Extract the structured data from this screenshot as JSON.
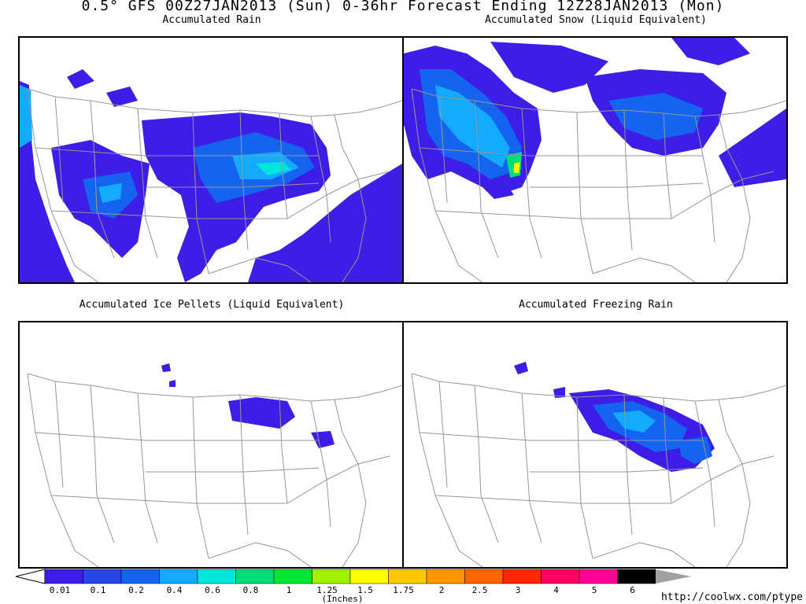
{
  "header": {
    "title": "0.5° GFS 00Z27JAN2013 (Sun) 0-36hr Forecast Ending 12Z28JAN2013 (Mon)"
  },
  "panels": [
    {
      "id": "rain",
      "title": "Accumulated Rain"
    },
    {
      "id": "snow",
      "title": "Accumulated Snow (Liquid Equivalent)"
    },
    {
      "id": "ice",
      "title": "Accumulated Ice Pellets (Liquid Equivalent)"
    },
    {
      "id": "frz",
      "title": "Accumulated Freezing Rain"
    }
  ],
  "legend": {
    "units": "(Inches)",
    "labels": [
      "0.01",
      "0.1",
      "0.2",
      "0.4",
      "0.6",
      "0.8",
      "1",
      "1.25",
      "1.5",
      "1.75",
      "2",
      "2.5",
      "3",
      "4",
      "5",
      "6"
    ],
    "colors": [
      "#3c1ee6",
      "#2846e6",
      "#1464f0",
      "#14aaff",
      "#00e6dc",
      "#00dc78",
      "#00e632",
      "#a0f000",
      "#ffff00",
      "#ffc800",
      "#ff9600",
      "#ff6400",
      "#ff2800",
      "#ff0064",
      "#ff0096",
      "#000000",
      "#a0a0a0"
    ]
  },
  "colors": {
    "border_lines": "#969696",
    "frame": "#000000"
  },
  "footer": {
    "url": "http://coolwx.com/ptype"
  }
}
